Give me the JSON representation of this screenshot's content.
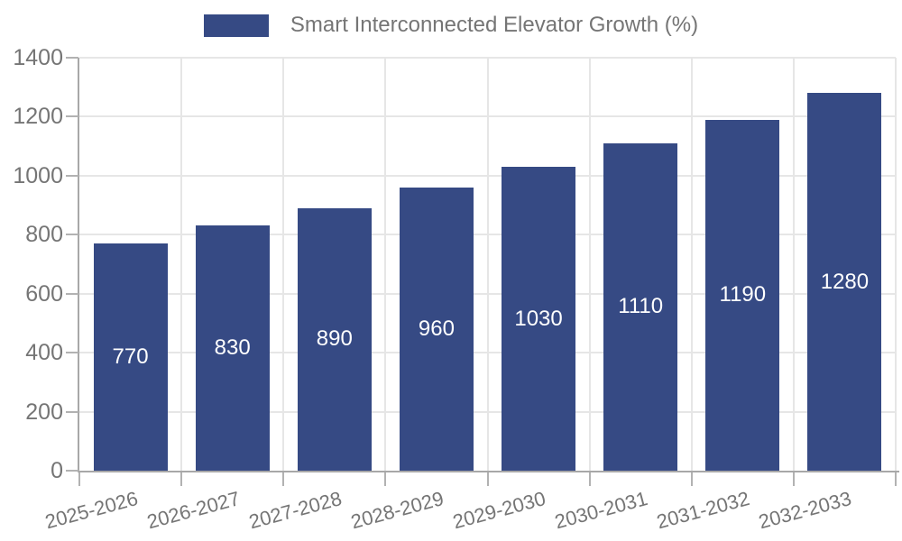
{
  "legend": {
    "label": "Smart Interconnected Elevator Growth (%)"
  },
  "colors": {
    "bar": "#364a84",
    "grid": "#e6e6e6",
    "axis": "#a8a8a8",
    "tick": "#b2b2b2",
    "tick_text": "#757575",
    "legend_text": "#757575",
    "value_label": "#ffffff",
    "background": "#ffffff"
  },
  "chart_data": {
    "type": "bar",
    "title": "",
    "xlabel": "",
    "ylabel": "",
    "categories": [
      "2025-2026",
      "2026-2027",
      "2027-2028",
      "2028-2029",
      "2029-2030",
      "2030-2031",
      "2031-2032",
      "2032-2033"
    ],
    "series": [
      {
        "name": "Smart Interconnected Elevator Growth (%)",
        "values": [
          770,
          830,
          890,
          960,
          1030,
          1110,
          1190,
          1280
        ]
      }
    ],
    "value_labels": [
      "770",
      "830",
      "890",
      "960",
      "1030",
      "1110",
      "1190",
      "1280"
    ],
    "y_ticks": [
      0,
      200,
      400,
      600,
      800,
      1000,
      1200,
      1400
    ],
    "ylim": [
      0,
      1400
    ],
    "grid": true,
    "grid_vertical": true,
    "legend_position": "top-center",
    "bar_value_label_position": "inside-center",
    "x_tick_rotation_deg": -15
  }
}
